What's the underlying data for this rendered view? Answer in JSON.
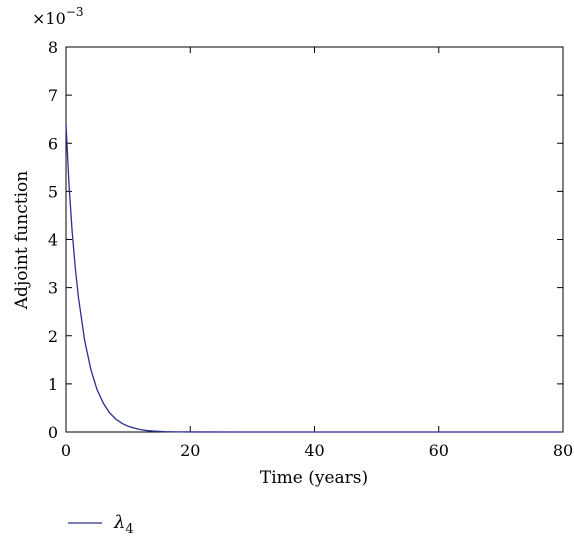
{
  "chart_data": {
    "type": "line",
    "title": "",
    "xlabel": "Time (years)",
    "ylabel": "Adjoint function",
    "xlim": [
      0,
      80
    ],
    "ylim": [
      0,
      8
    ],
    "x_ticks": [
      "0",
      "20",
      "40",
      "60",
      "80"
    ],
    "y_ticks": [
      "0",
      "1",
      "2",
      "3",
      "4",
      "5",
      "6",
      "7",
      "8"
    ],
    "y_multiplier_base": "×10",
    "y_multiplier_exp": "−3",
    "grid": false,
    "legend_placement": "bottom-left",
    "line_color": "#2b2f8f",
    "series": [
      {
        "name_symbol": "λ",
        "name_subscript": "4",
        "x": [
          0,
          0.5,
          1,
          1.5,
          2,
          3,
          4,
          5,
          6,
          7,
          8,
          9,
          10,
          11,
          12,
          13,
          14,
          16,
          18,
          20,
          30,
          40,
          50,
          60,
          70,
          80
        ],
        "y": [
          6.4,
          5.1,
          4.15,
          3.4,
          2.8,
          1.9,
          1.3,
          0.88,
          0.6,
          0.4,
          0.27,
          0.18,
          0.12,
          0.08,
          0.05,
          0.03,
          0.02,
          0.008,
          0.003,
          0.001,
          0,
          0,
          0,
          0,
          0,
          0
        ]
      }
    ]
  }
}
